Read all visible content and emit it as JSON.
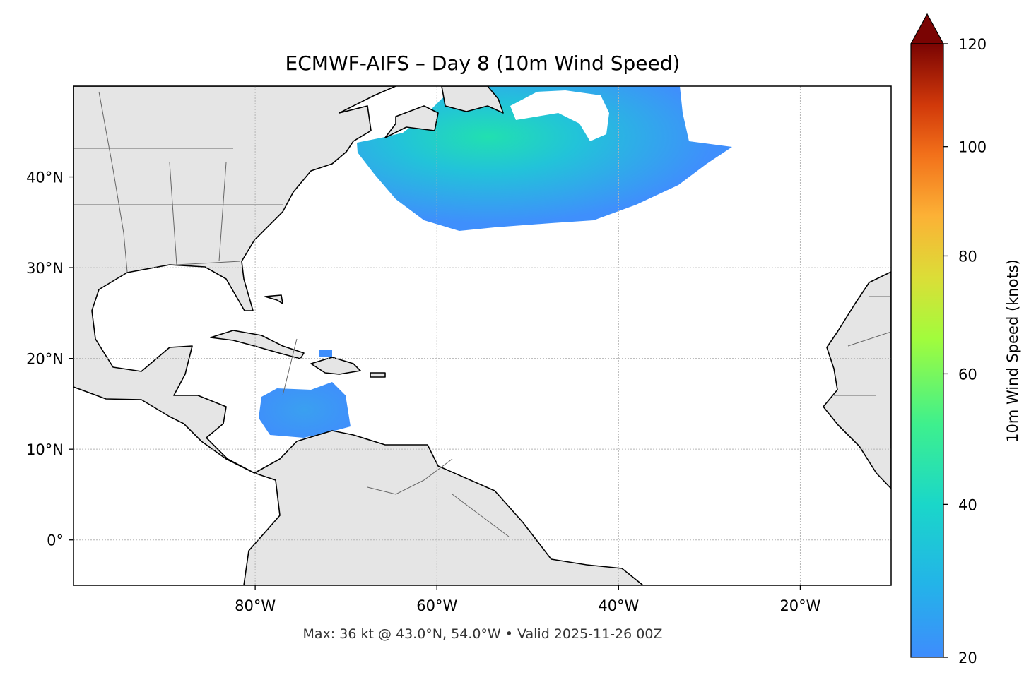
{
  "chart_data": {
    "type": "map",
    "title": "ECMWF-AIFS – Day 8 (10m Wind Speed)",
    "footer": "Max: 36 kt @ 43.0°N, 54.0°W • Valid 2025-11-26 00Z",
    "xlim": [
      -100,
      -10
    ],
    "ylim": [
      -5,
      50
    ],
    "xticks": [
      {
        "value": -80,
        "label": "80°W"
      },
      {
        "value": -60,
        "label": "60°W"
      },
      {
        "value": -40,
        "label": "40°W"
      },
      {
        "value": -20,
        "label": "20°W"
      }
    ],
    "yticks": [
      {
        "value": 0,
        "label": "0°"
      },
      {
        "value": 10,
        "label": "10°N"
      },
      {
        "value": 20,
        "label": "20°N"
      },
      {
        "value": 30,
        "label": "30°N"
      },
      {
        "value": 40,
        "label": "40°N"
      }
    ],
    "grid": true,
    "colorbar": {
      "label": "10m Wind Speed (knots)",
      "lim": [
        20,
        120
      ],
      "ticks": [
        20,
        40,
        60,
        80,
        100,
        120
      ]
    }
  }
}
